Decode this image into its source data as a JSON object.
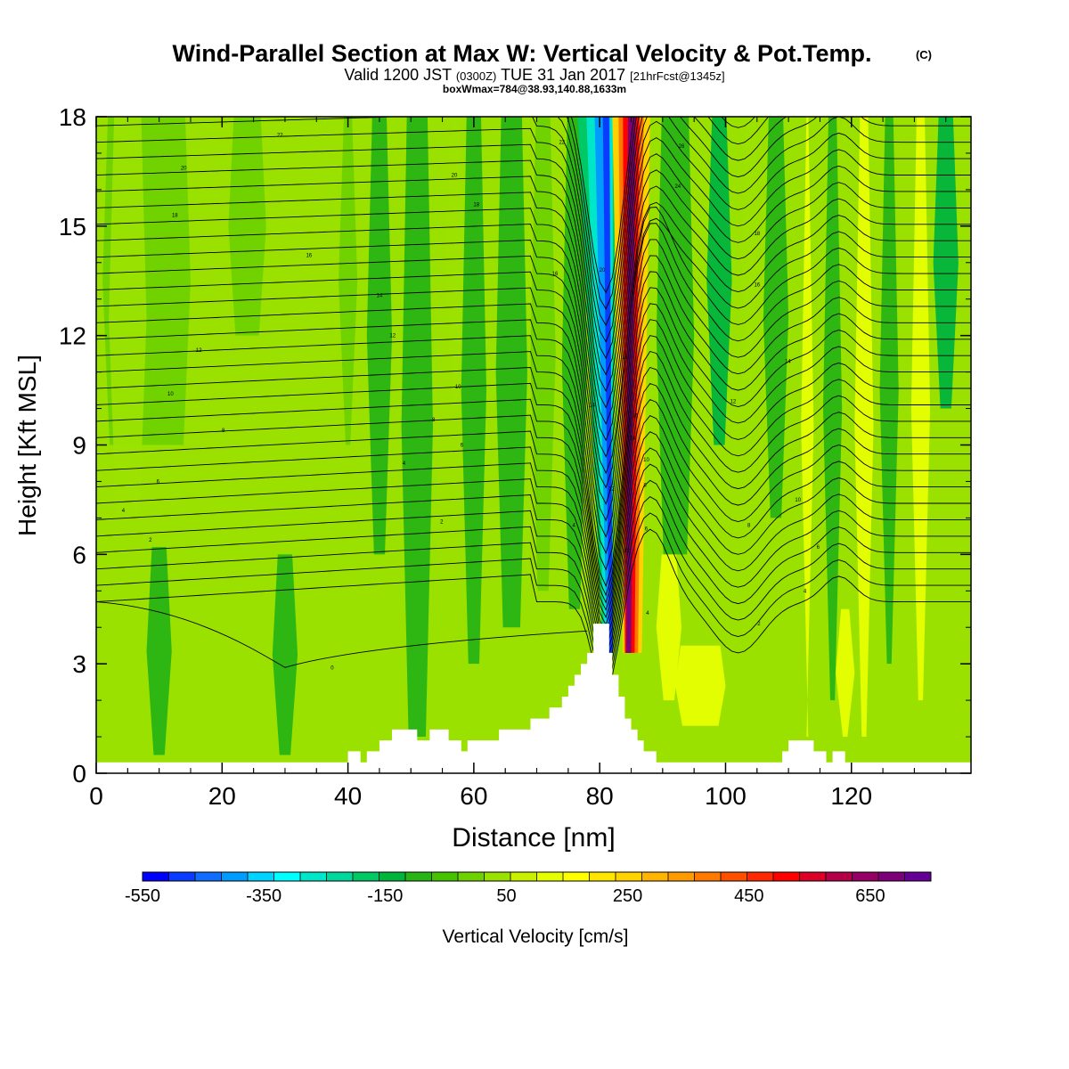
{
  "chart_data": {
    "type": "heatmap",
    "title": "Wind-Parallel Section at Max W: Vertical Velocity & Pot.Temp.",
    "title_mark": "(C)",
    "subtitle_prefix": "Valid 1200 JST",
    "subtitle_utc": "(0300Z)",
    "subtitle_date": "TUE 31 Jan 2017",
    "subtitle_fcst": "[21hrFcst@1345z]",
    "subtitle2": "boxWmax=784@38.93,140.88,1633m",
    "xlabel": "Distance [nm]",
    "ylabel": "Height [Kft MSL]",
    "xlim": [
      0,
      139
    ],
    "ylim": [
      0,
      18
    ],
    "xticks": [
      "0",
      "20",
      "40",
      "60",
      "80",
      "100",
      "120"
    ],
    "xtick_values": [
      0,
      20,
      40,
      60,
      80,
      100,
      120
    ],
    "yticks": [
      "0",
      "3",
      "6",
      "9",
      "12",
      "15",
      "18"
    ],
    "ytick_values": [
      0,
      3,
      6,
      9,
      12,
      15,
      18
    ],
    "colorbar": {
      "label": "Vertical Velocity [cm/s]",
      "min": -550,
      "max": 750,
      "step": 50,
      "tick_labels": [
        "-550",
        "-350",
        "-150",
        "50",
        "250",
        "450",
        "650"
      ],
      "tick_values": [
        -550,
        -350,
        -150,
        50,
        250,
        450,
        650
      ],
      "colors": [
        "#0000ff",
        "#0a3cff",
        "#0f6eff",
        "#009bff",
        "#00d2ff",
        "#00ffff",
        "#00e6c8",
        "#00d79b",
        "#00c864",
        "#00b43c",
        "#28b414",
        "#46c300",
        "#6ed200",
        "#9be100",
        "#c8f000",
        "#e6ff00",
        "#ffff00",
        "#ffe600",
        "#ffd200",
        "#ffb400",
        "#ff9b00",
        "#ff7800",
        "#ff5000",
        "#ff2800",
        "#ff0000",
        "#dc0028",
        "#b40046",
        "#960064",
        "#7d0078",
        "#640096"
      ]
    },
    "contour_labels": [
      {
        "text": "0",
        "x": 37.5,
        "y": 2.9
      },
      {
        "text": "2",
        "x": 8.6,
        "y": 6.4
      },
      {
        "text": "4",
        "x": 4.3,
        "y": 7.2
      },
      {
        "text": "6",
        "x": 9.8,
        "y": 8.0
      },
      {
        "text": "8",
        "x": 20.2,
        "y": 9.4
      },
      {
        "text": "10",
        "x": 11.8,
        "y": 10.4
      },
      {
        "text": "12",
        "x": 16.3,
        "y": 11.6
      },
      {
        "text": "14",
        "x": 45.0,
        "y": 13.1
      },
      {
        "text": "16",
        "x": 33.8,
        "y": 14.2
      },
      {
        "text": "18",
        "x": 12.5,
        "y": 15.3
      },
      {
        "text": "20",
        "x": 13.9,
        "y": 16.6
      },
      {
        "text": "22",
        "x": 29.2,
        "y": 17.5
      },
      {
        "text": "12",
        "x": 47.1,
        "y": 12.0
      },
      {
        "text": "10",
        "x": 57.5,
        "y": 10.6
      },
      {
        "text": "8",
        "x": 53.6,
        "y": 9.7
      },
      {
        "text": "6",
        "x": 58.1,
        "y": 9.0
      },
      {
        "text": "4",
        "x": 48.9,
        "y": 8.5
      },
      {
        "text": "2",
        "x": 54.9,
        "y": 6.9
      },
      {
        "text": "18",
        "x": 60.4,
        "y": 15.6
      },
      {
        "text": "20",
        "x": 56.9,
        "y": 16.4
      },
      {
        "text": "22",
        "x": 74.0,
        "y": 17.3
      },
      {
        "text": "16",
        "x": 72.9,
        "y": 13.7
      },
      {
        "text": "14",
        "x": 78.8,
        "y": 10.1
      },
      {
        "text": "12",
        "x": 81.9,
        "y": 7.8
      },
      {
        "text": "4",
        "x": 75.9,
        "y": 6.8
      },
      {
        "text": "20",
        "x": 80.4,
        "y": 13.8
      },
      {
        "text": "18",
        "x": 84.0,
        "y": 11.4
      },
      {
        "text": "16",
        "x": 85.6,
        "y": 9.8
      },
      {
        "text": "14",
        "x": 85.2,
        "y": 9.2
      },
      {
        "text": "12",
        "x": 84.3,
        "y": 6.1
      },
      {
        "text": "10",
        "x": 87.4,
        "y": 8.6
      },
      {
        "text": "8",
        "x": 87.2,
        "y": 7.9
      },
      {
        "text": "6",
        "x": 87.4,
        "y": 6.7
      },
      {
        "text": "4",
        "x": 87.6,
        "y": 4.4
      },
      {
        "text": "26",
        "x": 93.0,
        "y": 17.2
      },
      {
        "text": "24",
        "x": 92.4,
        "y": 16.1
      },
      {
        "text": "18",
        "x": 105.0,
        "y": 14.8
      },
      {
        "text": "16",
        "x": 105.0,
        "y": 13.4
      },
      {
        "text": "14",
        "x": 109.9,
        "y": 11.3
      },
      {
        "text": "12",
        "x": 101.2,
        "y": 10.2
      },
      {
        "text": "10",
        "x": 111.5,
        "y": 7.5
      },
      {
        "text": "8",
        "x": 103.7,
        "y": 6.8
      },
      {
        "text": "6",
        "x": 114.7,
        "y": 6.2
      },
      {
        "text": "4",
        "x": 112.6,
        "y": 5.0
      },
      {
        "text": "2",
        "x": 105.3,
        "y": 4.1
      }
    ]
  }
}
